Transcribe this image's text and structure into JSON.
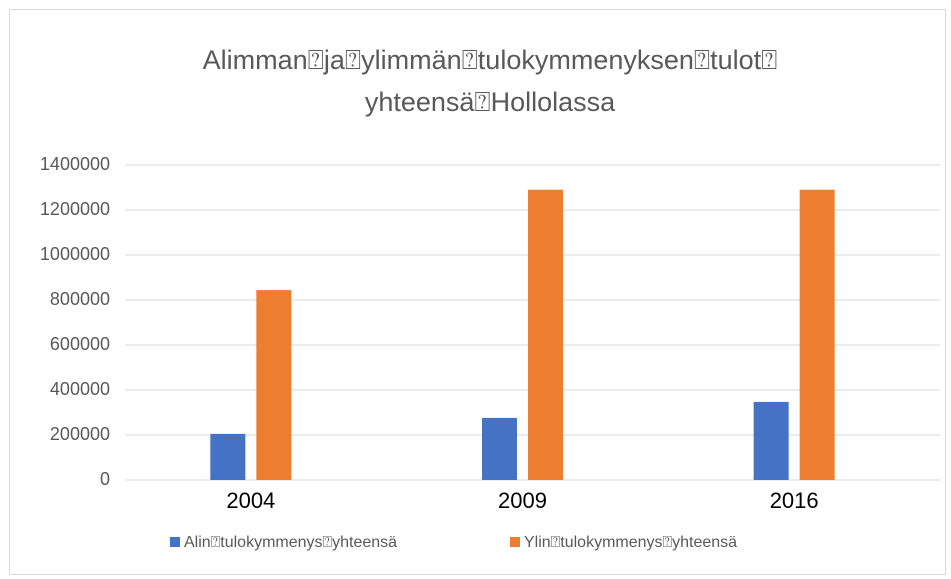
{
  "chart_data": {
    "type": "bar",
    "title": [
      "Alimman⍰ja⍰ylimmän⍰tulokymmenyksen⍰tulot⍰",
      "yhteensä⍰Hollolassa"
    ],
    "categories": [
      "2004",
      "2009",
      "2016"
    ],
    "series": [
      {
        "name": "Alin⍰tulokymmenys⍰yhteensä",
        "color": "#4472c4",
        "values": [
          205000,
          276000,
          347000
        ]
      },
      {
        "name": "Ylin⍰tulokymmenys⍰yhteensä",
        "color": "#ed7d31",
        "values": [
          844000,
          1290000,
          1290000
        ]
      }
    ],
    "ylim": [
      0,
      1400000
    ],
    "yticks": [
      0,
      200000,
      400000,
      600000,
      800000,
      1000000,
      1200000,
      1400000
    ],
    "grid": true,
    "legend": "bottom"
  }
}
